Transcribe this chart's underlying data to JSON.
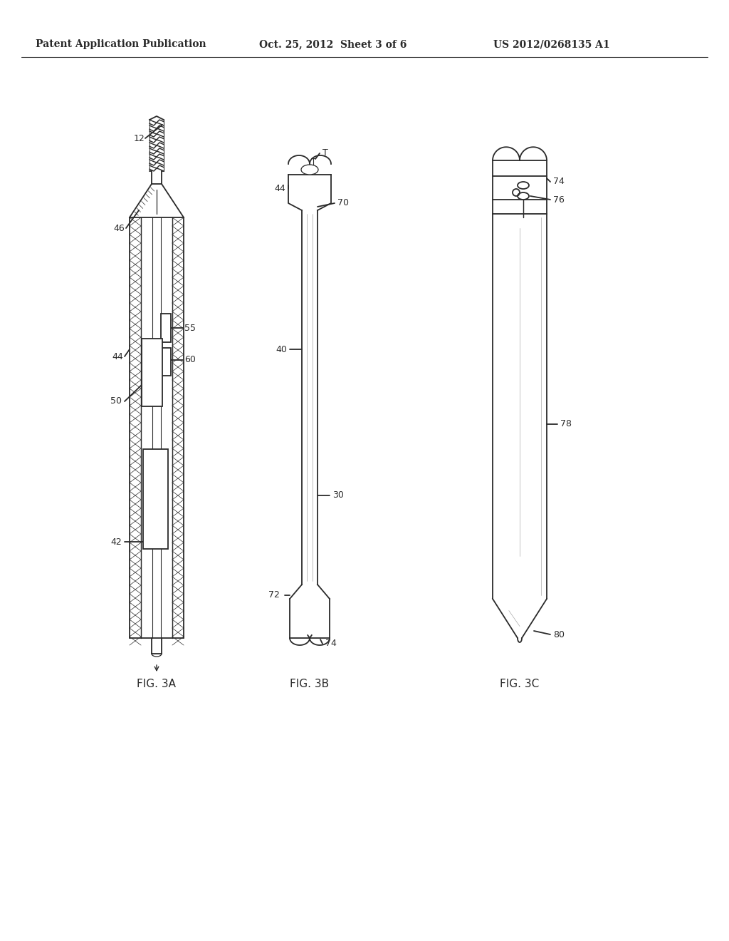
{
  "bg_color": "#ffffff",
  "line_color": "#2a2a2a",
  "header_left": "Patent Application Publication",
  "header_center": "Oct. 25, 2012  Sheet 3 of 6",
  "header_right": "US 2012/0268135 A1",
  "fig3a_label": "FIG. 3A",
  "fig3b_label": "FIG. 3B",
  "fig3c_label": "FIG. 3C"
}
